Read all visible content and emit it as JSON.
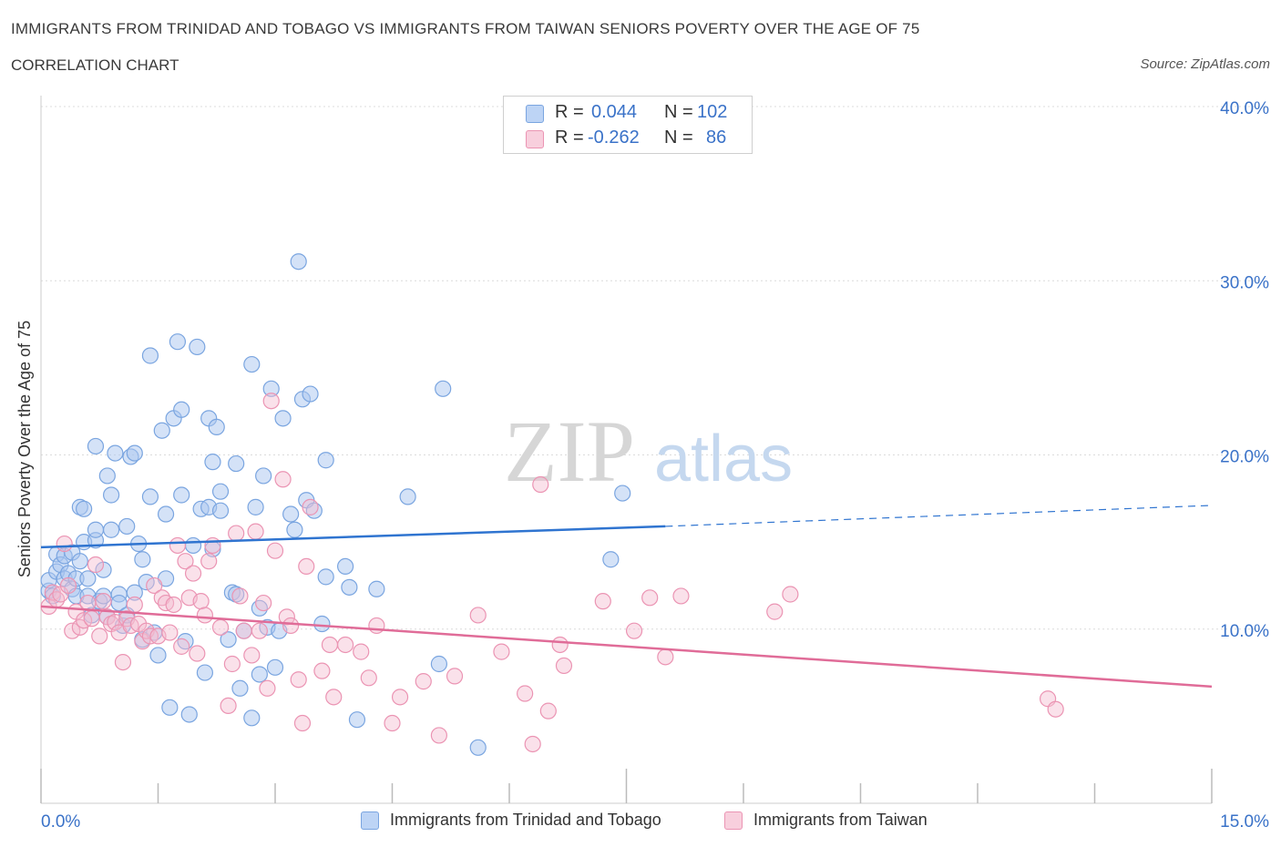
{
  "header": {
    "title": "IMMIGRANTS FROM TRINIDAD AND TOBAGO VS IMMIGRANTS FROM TAIWAN SENIORS POVERTY OVER THE AGE OF 75",
    "subtitle": "CORRELATION CHART",
    "source": "Source: ZipAtlas.com"
  },
  "legend": {
    "r_label": "R =",
    "n_label": "N =",
    "series": [
      {
        "r": "0.044",
        "n": "102"
      },
      {
        "r": "-0.262",
        "n": "86"
      }
    ]
  },
  "watermark": {
    "zip": "ZIP",
    "atlas": "atlas"
  },
  "colors": {
    "blue_fill": "#a9c6f0",
    "blue_stroke": "#7aa5e0",
    "blue_line": "#2f74d0",
    "pink_fill": "#f5bcd0",
    "pink_stroke": "#eb94b3",
    "pink_line": "#e06c98",
    "tick_label": "#3a72c8",
    "grid": "#dcdcdc"
  },
  "chart_data": {
    "type": "scatter",
    "ylabel": "Seniors Poverty Over the Age of 75",
    "xlim": [
      0,
      15
    ],
    "ylim": [
      0,
      40
    ],
    "x_tick_labels": [
      "0.0%",
      "15.0%"
    ],
    "y_ticks": [
      10,
      20,
      30,
      40
    ],
    "y_tick_labels": [
      "10.0%",
      "20.0%",
      "30.0%",
      "40.0%"
    ],
    "grid": true,
    "series": [
      {
        "name": "Immigrants from Trinidad and Tobago",
        "color": "#a9c6f0",
        "trend": {
          "x0": 0.0,
          "y0": 14.7,
          "x1": 8.0,
          "y1": 15.9,
          "dashed_to_x": 15.0,
          "dashed_to_y": 17.1
        },
        "points": [
          [
            0.1,
            12.2
          ],
          [
            0.1,
            12.8
          ],
          [
            0.15,
            11.9
          ],
          [
            0.2,
            14.3
          ],
          [
            0.2,
            13.3
          ],
          [
            0.25,
            13.7
          ],
          [
            0.3,
            14.2
          ],
          [
            0.3,
            12.9
          ],
          [
            0.35,
            13.2
          ],
          [
            0.4,
            14.4
          ],
          [
            0.4,
            12.3
          ],
          [
            0.45,
            12.9
          ],
          [
            0.45,
            11.9
          ],
          [
            0.5,
            17.0
          ],
          [
            0.5,
            13.9
          ],
          [
            0.55,
            16.9
          ],
          [
            0.55,
            15.0
          ],
          [
            0.6,
            11.9
          ],
          [
            0.6,
            12.9
          ],
          [
            0.65,
            10.8
          ],
          [
            0.7,
            15.1
          ],
          [
            0.7,
            20.5
          ],
          [
            0.7,
            15.7
          ],
          [
            0.75,
            11.6
          ],
          [
            0.8,
            13.4
          ],
          [
            0.8,
            11.9
          ],
          [
            0.85,
            18.8
          ],
          [
            0.85,
            10.7
          ],
          [
            0.9,
            17.7
          ],
          [
            0.9,
            15.7
          ],
          [
            0.95,
            20.1
          ],
          [
            1.0,
            12.0
          ],
          [
            1.0,
            11.5
          ],
          [
            1.05,
            10.2
          ],
          [
            1.1,
            15.9
          ],
          [
            1.1,
            10.8
          ],
          [
            1.15,
            19.9
          ],
          [
            1.2,
            12.1
          ],
          [
            1.2,
            20.1
          ],
          [
            1.25,
            14.9
          ],
          [
            1.3,
            14.0
          ],
          [
            1.3,
            9.4
          ],
          [
            1.35,
            12.7
          ],
          [
            1.4,
            25.7
          ],
          [
            1.4,
            17.6
          ],
          [
            1.45,
            9.8
          ],
          [
            1.5,
            8.5
          ],
          [
            1.55,
            21.4
          ],
          [
            1.6,
            12.9
          ],
          [
            1.6,
            16.6
          ],
          [
            1.65,
            5.5
          ],
          [
            1.7,
            22.1
          ],
          [
            1.75,
            26.5
          ],
          [
            1.8,
            22.6
          ],
          [
            1.8,
            17.7
          ],
          [
            1.85,
            9.3
          ],
          [
            1.9,
            5.1
          ],
          [
            1.95,
            14.8
          ],
          [
            2.0,
            26.2
          ],
          [
            2.05,
            16.9
          ],
          [
            2.1,
            7.5
          ],
          [
            2.15,
            22.1
          ],
          [
            2.15,
            17.0
          ],
          [
            2.2,
            19.6
          ],
          [
            2.2,
            14.6
          ],
          [
            2.25,
            21.6
          ],
          [
            2.3,
            17.9
          ],
          [
            2.3,
            16.8
          ],
          [
            2.4,
            9.4
          ],
          [
            2.45,
            12.1
          ],
          [
            2.5,
            19.5
          ],
          [
            2.5,
            12.0
          ],
          [
            2.55,
            6.6
          ],
          [
            2.6,
            9.9
          ],
          [
            2.7,
            4.9
          ],
          [
            2.7,
            25.2
          ],
          [
            2.75,
            17.0
          ],
          [
            2.8,
            11.2
          ],
          [
            2.8,
            7.4
          ],
          [
            2.85,
            18.8
          ],
          [
            2.9,
            10.1
          ],
          [
            2.95,
            23.8
          ],
          [
            3.0,
            7.8
          ],
          [
            3.05,
            9.9
          ],
          [
            3.1,
            22.1
          ],
          [
            3.2,
            16.6
          ],
          [
            3.25,
            15.7
          ],
          [
            3.3,
            31.1
          ],
          [
            3.35,
            23.2
          ],
          [
            3.4,
            17.4
          ],
          [
            3.45,
            23.5
          ],
          [
            3.5,
            16.8
          ],
          [
            3.6,
            10.3
          ],
          [
            3.65,
            19.7
          ],
          [
            3.65,
            13.0
          ],
          [
            3.9,
            13.6
          ],
          [
            3.95,
            12.4
          ],
          [
            4.05,
            4.8
          ],
          [
            4.3,
            12.3
          ],
          [
            4.7,
            17.6
          ],
          [
            5.1,
            8.0
          ],
          [
            5.15,
            23.8
          ],
          [
            5.6,
            3.2
          ],
          [
            7.3,
            14.0
          ],
          [
            7.45,
            17.8
          ]
        ]
      },
      {
        "name": "Immigrants from Taiwan",
        "color": "#f5bcd0",
        "trend": {
          "x0": 0.0,
          "y0": 11.3,
          "x1": 15.0,
          "y1": 6.7
        },
        "points": [
          [
            0.1,
            11.3
          ],
          [
            0.15,
            12.1
          ],
          [
            0.2,
            11.7
          ],
          [
            0.25,
            12.0
          ],
          [
            0.3,
            14.9
          ],
          [
            0.35,
            12.5
          ],
          [
            0.4,
            9.9
          ],
          [
            0.45,
            11.0
          ],
          [
            0.5,
            10.1
          ],
          [
            0.55,
            10.5
          ],
          [
            0.6,
            11.5
          ],
          [
            0.65,
            10.6
          ],
          [
            0.7,
            13.7
          ],
          [
            0.75,
            9.6
          ],
          [
            0.8,
            11.6
          ],
          [
            0.85,
            10.7
          ],
          [
            0.9,
            10.3
          ],
          [
            0.95,
            10.4
          ],
          [
            1.0,
            9.8
          ],
          [
            1.05,
            8.1
          ],
          [
            1.1,
            10.6
          ],
          [
            1.15,
            10.2
          ],
          [
            1.2,
            11.4
          ],
          [
            1.25,
            10.3
          ],
          [
            1.3,
            9.3
          ],
          [
            1.35,
            9.9
          ],
          [
            1.4,
            9.6
          ],
          [
            1.45,
            12.5
          ],
          [
            1.5,
            9.6
          ],
          [
            1.55,
            11.8
          ],
          [
            1.6,
            11.5
          ],
          [
            1.65,
            9.8
          ],
          [
            1.7,
            11.4
          ],
          [
            1.75,
            14.8
          ],
          [
            1.8,
            9.0
          ],
          [
            1.85,
            13.9
          ],
          [
            1.9,
            11.8
          ],
          [
            1.95,
            13.2
          ],
          [
            2.0,
            8.6
          ],
          [
            2.05,
            11.6
          ],
          [
            2.1,
            10.8
          ],
          [
            2.15,
            13.9
          ],
          [
            2.2,
            14.8
          ],
          [
            2.3,
            10.1
          ],
          [
            2.4,
            5.6
          ],
          [
            2.45,
            8.0
          ],
          [
            2.5,
            15.5
          ],
          [
            2.55,
            11.9
          ],
          [
            2.6,
            9.9
          ],
          [
            2.7,
            8.5
          ],
          [
            2.75,
            15.6
          ],
          [
            2.8,
            9.9
          ],
          [
            2.85,
            11.5
          ],
          [
            2.9,
            6.6
          ],
          [
            2.95,
            23.1
          ],
          [
            3.0,
            14.5
          ],
          [
            3.1,
            18.6
          ],
          [
            3.15,
            10.7
          ],
          [
            3.2,
            10.2
          ],
          [
            3.3,
            7.1
          ],
          [
            3.35,
            4.6
          ],
          [
            3.4,
            13.6
          ],
          [
            3.45,
            17.0
          ],
          [
            3.6,
            7.6
          ],
          [
            3.7,
            9.1
          ],
          [
            3.75,
            6.1
          ],
          [
            3.9,
            9.1
          ],
          [
            4.1,
            8.7
          ],
          [
            4.2,
            7.2
          ],
          [
            4.3,
            10.2
          ],
          [
            4.5,
            4.6
          ],
          [
            4.6,
            6.1
          ],
          [
            4.9,
            7.0
          ],
          [
            5.1,
            3.9
          ],
          [
            5.3,
            7.3
          ],
          [
            5.6,
            10.8
          ],
          [
            5.9,
            8.7
          ],
          [
            6.2,
            6.3
          ],
          [
            6.3,
            3.4
          ],
          [
            6.4,
            18.3
          ],
          [
            6.5,
            5.3
          ],
          [
            6.65,
            9.1
          ],
          [
            6.7,
            7.9
          ],
          [
            7.2,
            11.6
          ],
          [
            7.6,
            9.9
          ],
          [
            7.8,
            11.8
          ],
          [
            8.0,
            8.4
          ],
          [
            8.2,
            11.9
          ],
          [
            9.4,
            11.0
          ],
          [
            9.6,
            12.0
          ],
          [
            12.9,
            6.0
          ],
          [
            13.0,
            5.4
          ]
        ]
      }
    ]
  },
  "bottom_legend": [
    {
      "label": "Immigrants from Trinidad and Tobago"
    },
    {
      "label": "Immigrants from Taiwan"
    }
  ]
}
